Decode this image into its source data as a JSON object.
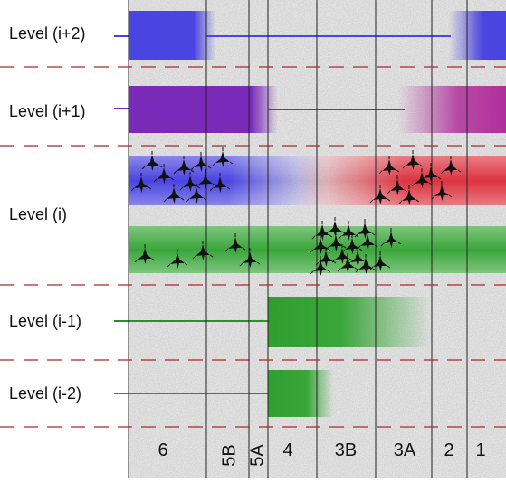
{
  "levels": [
    {
      "label": "Level (i+2)"
    },
    {
      "label": "Level (i+1)"
    },
    {
      "label": "Level (i)"
    },
    {
      "label": "Level (i-1)"
    },
    {
      "label": "Level (i-2)"
    }
  ],
  "layers": [
    {
      "label": "6"
    },
    {
      "label": "5B"
    },
    {
      "label": "5A"
    },
    {
      "label": "4"
    },
    {
      "label": "3B"
    },
    {
      "label": "3A"
    },
    {
      "label": "2"
    },
    {
      "label": "1"
    }
  ],
  "colors": {
    "blue": "#4a44e0",
    "purple": "#7a2ab8",
    "magenta": "#b0309a",
    "red": "#dc3440",
    "green": "#3aa63a",
    "separator": "#a82828",
    "neuron": "#111111"
  }
}
